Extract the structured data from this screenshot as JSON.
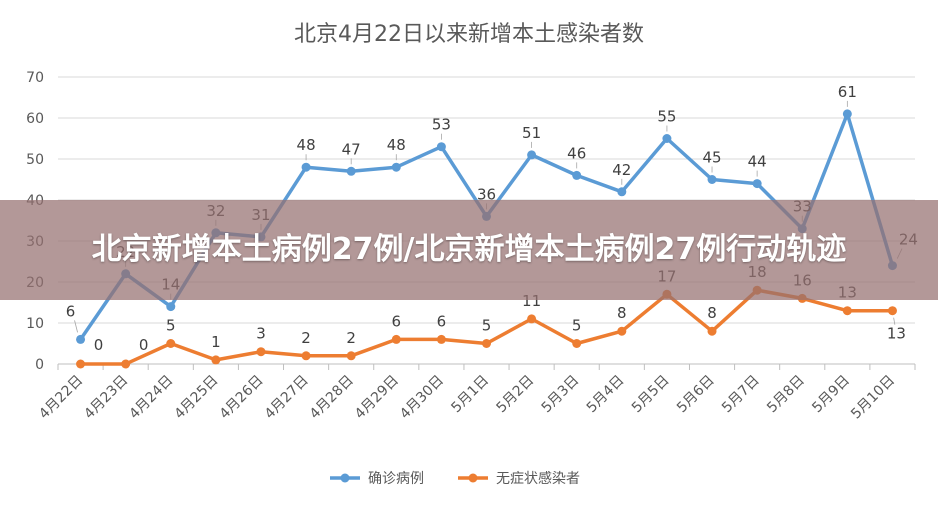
{
  "overlay": {
    "banner_text": "北京新增本土病例27例/北京新增本土病例27例行动轨迹"
  },
  "chart_data": {
    "type": "line",
    "title": "北京4月22日以来新增本土感染者数",
    "categories": [
      "4月22日",
      "4月23日",
      "4月24日",
      "4月25日",
      "4月26日",
      "4月27日",
      "4月28日",
      "4月29日",
      "4月30日",
      "5月1日",
      "5月2日",
      "5月3日",
      "5月4日",
      "5月5日",
      "5月6日",
      "5月7日",
      "5月8日",
      "5月9日",
      "5月10日"
    ],
    "ylim": [
      0,
      70
    ],
    "yticks": [
      0,
      10,
      20,
      30,
      40,
      50,
      60,
      70
    ],
    "grid": true,
    "legend_position": "bottom",
    "series": [
      {
        "name": "确诊病例",
        "color": "#5b9bd5",
        "values": [
          6,
          22,
          14,
          32,
          31,
          48,
          47,
          48,
          53,
          36,
          51,
          46,
          42,
          55,
          45,
          44,
          33,
          61,
          24
        ]
      },
      {
        "name": "无症状感染者",
        "color": "#ed7d31",
        "values": [
          0,
          0,
          5,
          1,
          3,
          2,
          2,
          6,
          6,
          5,
          11,
          5,
          8,
          17,
          8,
          18,
          16,
          13,
          13
        ]
      }
    ]
  }
}
